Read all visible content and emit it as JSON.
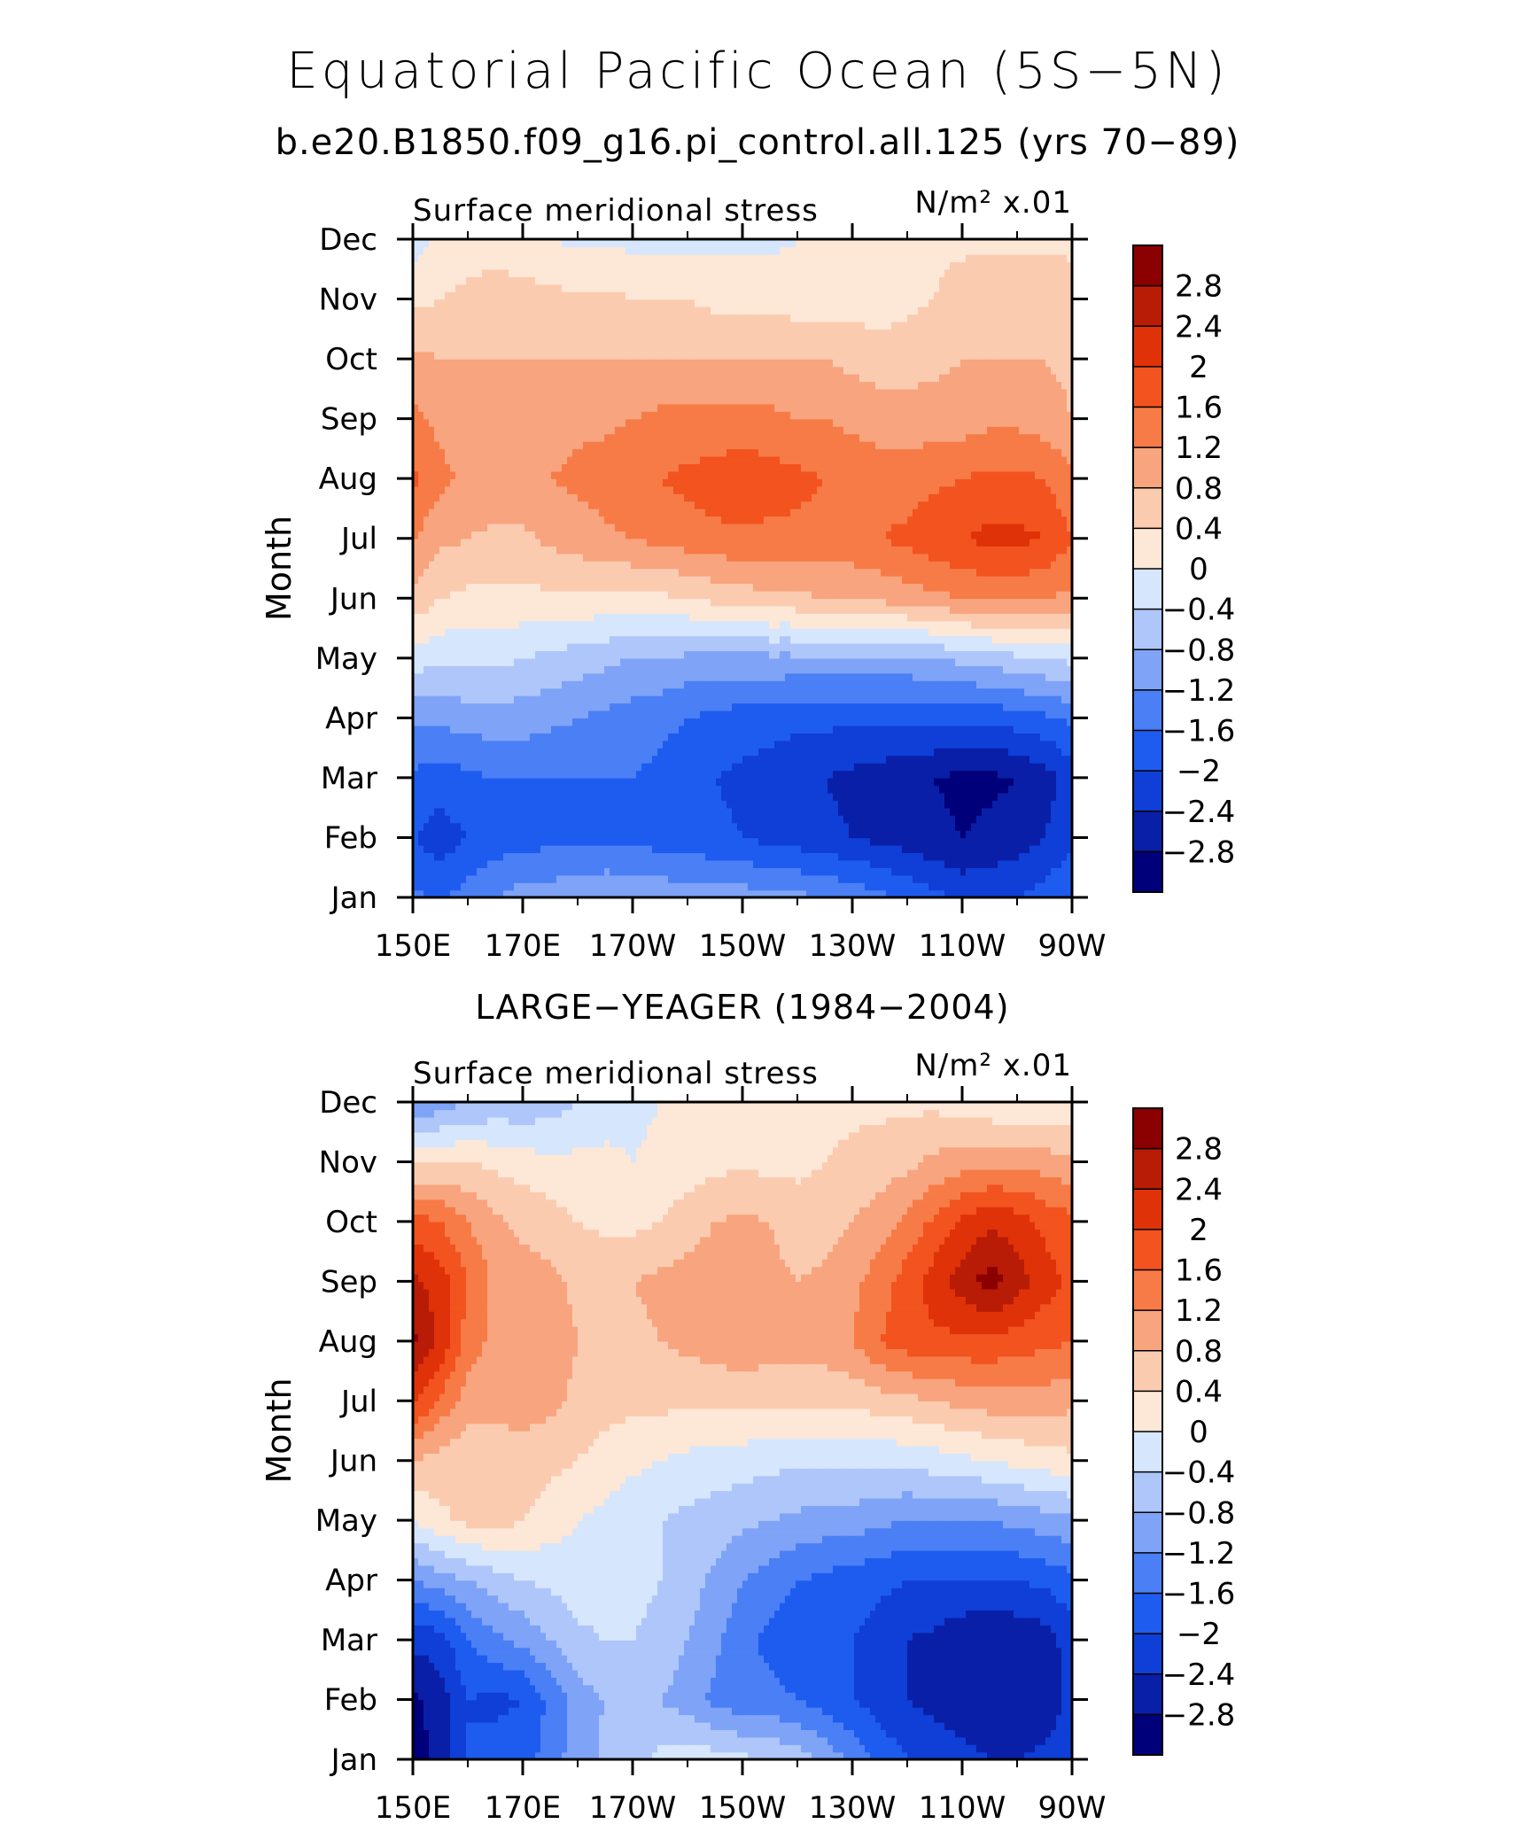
{
  "title": "Equatorial Pacific Ocean (5S−5N)",
  "subtitle": "b.e20.B1850.f09_g16.pi_control.all.125 (yrs 70−89)",
  "colorbar": {
    "levels": [
      -2.8,
      -2.4,
      -2,
      -1.6,
      -1.2,
      -0.8,
      -0.4,
      0,
      0.4,
      0.8,
      1.2,
      1.6,
      2,
      2.4,
      2.8
    ],
    "labels": [
      "2.8",
      "2.4",
      "2",
      "1.6",
      "1.2",
      "0.8",
      "0.4",
      "0",
      "−0.4",
      "−0.8",
      "−1.2",
      "−1.6",
      "−2",
      "−2.4",
      "−2.8"
    ],
    "colors": [
      "#00007a",
      "#0a1fa8",
      "#0f3fd6",
      "#1e5cf0",
      "#4a7ff5",
      "#7ea3f7",
      "#aec6fa",
      "#d6e6fc",
      "#fde7d6",
      "#fbcbb0",
      "#f8a47e",
      "#f77b47",
      "#f2531f",
      "#e03208",
      "#b81c06",
      "#8b0000"
    ]
  },
  "chart_data": [
    {
      "type": "heatmap",
      "label": "b.e20.B1850.f09_g16.pi_control.all.125 (yrs 70−89)",
      "panel_title": "",
      "left_label": "Surface meridional stress",
      "right_label": "N/m² x.01",
      "ylabel": "Month",
      "xlabel": "",
      "x_tick_labels": [
        "150E",
        "170E",
        "170W",
        "150W",
        "130W",
        "110W",
        "90W"
      ],
      "y_tick_labels": [
        "Jan",
        "Feb",
        "Mar",
        "Apr",
        "May",
        "Jun",
        "Jul",
        "Aug",
        "Sep",
        "Oct",
        "Nov",
        "Dec"
      ],
      "x_lon": [
        150,
        155,
        160,
        165,
        170,
        175,
        180,
        185,
        190,
        195,
        200,
        205,
        210,
        215,
        220,
        225,
        230,
        235,
        240,
        245,
        250,
        255,
        260,
        265,
        270
      ],
      "values": [
        [
          -1.5,
          -1.7,
          -1.4,
          -1.2,
          -1.0,
          -1.0,
          -0.9,
          -0.8,
          -0.9,
          -0.9,
          -1.0,
          -1.0,
          -1.0,
          -1.1,
          -1.1,
          -1.2,
          -1.3,
          -1.5,
          -1.7,
          -1.9,
          -2.1,
          -2.1,
          -2.0,
          -1.8,
          -1.6
        ],
        [
          -2.0,
          -2.2,
          -2.0,
          -1.8,
          -1.8,
          -1.7,
          -1.7,
          -1.7,
          -1.7,
          -1.8,
          -1.8,
          -1.9,
          -2.0,
          -2.1,
          -2.2,
          -2.3,
          -2.4,
          -2.5,
          -2.6,
          -2.7,
          -2.8,
          -2.7,
          -2.6,
          -2.4,
          -2.1
        ],
        [
          -1.7,
          -1.8,
          -1.7,
          -1.6,
          -1.6,
          -1.6,
          -1.6,
          -1.6,
          -1.6,
          -1.7,
          -1.8,
          -2.0,
          -2.1,
          -2.2,
          -2.3,
          -2.4,
          -2.5,
          -2.6,
          -2.7,
          -2.8,
          -2.9,
          -2.9,
          -2.8,
          -2.6,
          -2.2
        ],
        [
          -1.1,
          -1.1,
          -1.0,
          -1.0,
          -1.0,
          -1.1,
          -1.2,
          -1.3,
          -1.4,
          -1.5,
          -1.6,
          -1.7,
          -1.8,
          -1.8,
          -1.9,
          -1.9,
          -1.9,
          -1.9,
          -1.9,
          -1.9,
          -1.9,
          -1.9,
          -1.8,
          -1.7,
          -1.5
        ],
        [
          -0.2,
          -0.3,
          -0.3,
          -0.3,
          -0.4,
          -0.5,
          -0.6,
          -0.7,
          -0.8,
          -0.8,
          -0.9,
          -0.9,
          -0.9,
          -0.9,
          -0.9,
          -0.9,
          -0.9,
          -0.9,
          -0.9,
          -0.8,
          -0.7,
          -0.6,
          -0.5,
          -0.4,
          -0.3
        ],
        [
          0.7,
          0.4,
          0.3,
          0.3,
          0.3,
          0.3,
          0.3,
          0.3,
          0.3,
          0.3,
          0.4,
          0.5,
          0.6,
          0.7,
          0.7,
          0.8,
          0.8,
          0.9,
          1.0,
          1.1,
          1.2,
          1.3,
          1.3,
          1.2,
          1.1
        ],
        [
          1.2,
          0.9,
          0.8,
          0.7,
          0.7,
          0.9,
          1.0,
          1.1,
          1.2,
          1.3,
          1.4,
          1.5,
          1.5,
          1.5,
          1.5,
          1.5,
          1.5,
          1.6,
          1.7,
          1.9,
          2.0,
          2.1,
          2.1,
          2.0,
          1.6
        ],
        [
          1.7,
          1.3,
          1.1,
          1.1,
          1.1,
          1.2,
          1.3,
          1.4,
          1.5,
          1.6,
          1.7,
          1.8,
          1.9,
          1.8,
          1.7,
          1.6,
          1.5,
          1.4,
          1.4,
          1.5,
          1.6,
          1.7,
          1.7,
          1.6,
          1.3
        ],
        [
          1.3,
          1.1,
          1.0,
          1.0,
          1.0,
          1.0,
          1.1,
          1.1,
          1.2,
          1.3,
          1.3,
          1.3,
          1.3,
          1.3,
          1.2,
          1.2,
          1.1,
          1.0,
          1.0,
          1.0,
          1.0,
          1.1,
          1.1,
          1.0,
          0.8
        ],
        [
          0.9,
          0.8,
          0.8,
          0.8,
          0.8,
          0.8,
          0.8,
          0.8,
          0.8,
          0.8,
          0.8,
          0.8,
          0.8,
          0.8,
          0.8,
          0.8,
          0.7,
          0.6,
          0.6,
          0.7,
          0.8,
          0.8,
          0.8,
          0.8,
          0.7
        ],
        [
          0.3,
          0.4,
          0.5,
          0.6,
          0.6,
          0.5,
          0.5,
          0.5,
          0.4,
          0.4,
          0.4,
          0.3,
          0.3,
          0.3,
          0.2,
          0.2,
          0.2,
          0.2,
          0.3,
          0.4,
          0.6,
          0.7,
          0.7,
          0.7,
          0.6
        ],
        [
          -0.2,
          0.1,
          0.2,
          0.2,
          0.1,
          0.0,
          -0.1,
          -0.1,
          -0.1,
          -0.1,
          -0.1,
          -0.1,
          -0.1,
          -0.1,
          0.0,
          0.1,
          0.2,
          0.2,
          0.2,
          0.3,
          0.3,
          0.3,
          0.3,
          0.3,
          0.3
        ]
      ]
    },
    {
      "type": "heatmap",
      "label": "LARGE−YEAGER (1984−2004)",
      "panel_title": "LARGE−YEAGER (1984−2004)",
      "left_label": "Surface meridional stress",
      "right_label": "N/m² x.01",
      "ylabel": "Month",
      "xlabel": "",
      "x_tick_labels": [
        "150E",
        "170E",
        "170W",
        "150W",
        "130W",
        "110W",
        "90W"
      ],
      "y_tick_labels": [
        "Jan",
        "Feb",
        "Mar",
        "Apr",
        "May",
        "Jun",
        "Jul",
        "Aug",
        "Sep",
        "Oct",
        "Nov",
        "Dec"
      ],
      "x_lon": [
        150,
        155,
        160,
        165,
        170,
        175,
        180,
        185,
        190,
        195,
        200,
        205,
        210,
        215,
        220,
        225,
        230,
        235,
        240,
        245,
        250,
        255,
        260,
        265,
        270
      ],
      "values": [
        [
          -3.0,
          -2.7,
          -2.0,
          -1.8,
          -1.8,
          -1.4,
          -1.0,
          -0.7,
          -0.5,
          -0.3,
          -0.2,
          -0.2,
          -0.3,
          -0.4,
          -0.6,
          -0.9,
          -1.3,
          -1.7,
          -2.0,
          -2.2,
          -2.3,
          -2.4,
          -2.4,
          -2.3,
          -2.2
        ],
        [
          -2.9,
          -2.6,
          -2.0,
          -2.1,
          -2.0,
          -1.5,
          -1.0,
          -0.8,
          -0.7,
          -0.8,
          -1.0,
          -1.3,
          -1.5,
          -1.5,
          -1.6,
          -1.8,
          -2.0,
          -2.2,
          -2.4,
          -2.5,
          -2.6,
          -2.7,
          -2.7,
          -2.6,
          -2.3
        ],
        [
          -2.3,
          -2.2,
          -1.6,
          -1.3,
          -1.1,
          -0.8,
          -0.5,
          -0.4,
          -0.4,
          -0.5,
          -0.8,
          -1.1,
          -1.5,
          -1.7,
          -1.8,
          -1.9,
          -2.0,
          -2.2,
          -2.4,
          -2.5,
          -2.7,
          -2.8,
          -2.7,
          -2.6,
          -2.2
        ],
        [
          -1.2,
          -1.0,
          -0.8,
          -0.6,
          -0.4,
          -0.3,
          -0.2,
          -0.2,
          -0.3,
          -0.4,
          -0.6,
          -0.9,
          -1.2,
          -1.4,
          -1.6,
          -1.7,
          -1.8,
          -1.9,
          -2.0,
          -2.0,
          -2.0,
          -2.0,
          -2.0,
          -1.9,
          -1.7
        ],
        [
          0.0,
          0.3,
          0.5,
          0.6,
          0.4,
          0.2,
          0.0,
          -0.1,
          -0.3,
          -0.4,
          -0.5,
          -0.6,
          -0.7,
          -0.8,
          -0.9,
          -1.0,
          -1.0,
          -1.1,
          -1.2,
          -1.2,
          -1.2,
          -1.2,
          -1.1,
          -1.0,
          -0.9
        ],
        [
          0.8,
          0.6,
          0.5,
          0.6,
          0.6,
          0.5,
          0.4,
          0.2,
          0.1,
          0.0,
          -0.1,
          -0.2,
          -0.2,
          -0.3,
          -0.3,
          -0.3,
          -0.3,
          -0.3,
          -0.3,
          -0.2,
          -0.1,
          0.0,
          0.1,
          0.2,
          0.3
        ],
        [
          2.1,
          1.5,
          1.0,
          0.9,
          1.0,
          0.9,
          0.7,
          0.6,
          0.5,
          0.5,
          0.5,
          0.5,
          0.5,
          0.5,
          0.5,
          0.5,
          0.5,
          0.6,
          0.7,
          0.8,
          0.9,
          1.0,
          1.0,
          1.0,
          0.9
        ],
        [
          2.9,
          2.3,
          1.4,
          1.1,
          1.2,
          1.1,
          0.8,
          0.7,
          0.7,
          0.8,
          0.9,
          1.0,
          1.1,
          1.0,
          1.0,
          1.0,
          1.2,
          1.6,
          1.8,
          1.9,
          1.9,
          1.9,
          1.8,
          1.7,
          1.6
        ],
        [
          2.5,
          2.2,
          1.6,
          1.1,
          1.0,
          0.9,
          0.7,
          0.7,
          0.8,
          0.9,
          1.0,
          1.0,
          1.0,
          0.9,
          0.8,
          0.9,
          1.1,
          1.4,
          1.8,
          2.2,
          2.6,
          3.0,
          2.6,
          2.2,
          1.9
        ],
        [
          1.8,
          1.6,
          1.2,
          0.9,
          0.7,
          0.6,
          0.4,
          0.3,
          0.3,
          0.4,
          0.6,
          0.8,
          0.9,
          0.8,
          0.6,
          0.6,
          0.8,
          1.0,
          1.3,
          1.7,
          2.1,
          2.3,
          2.2,
          1.9,
          1.7
        ],
        [
          0.3,
          0.4,
          0.4,
          0.3,
          0.2,
          0.1,
          0.1,
          0.1,
          0.0,
          0.1,
          0.2,
          0.3,
          0.3,
          0.3,
          0.3,
          0.4,
          0.5,
          0.6,
          0.7,
          0.9,
          1.0,
          1.1,
          1.1,
          1.0,
          0.9
        ],
        [
          -1.3,
          -1.0,
          -0.8,
          -0.7,
          -0.7,
          -0.6,
          -0.4,
          -0.2,
          -0.1,
          0.0,
          0.1,
          0.2,
          0.2,
          0.3,
          0.3,
          0.3,
          0.3,
          0.3,
          0.3,
          0.3,
          0.2,
          0.1,
          0.0,
          0.0,
          0.1
        ]
      ]
    }
  ]
}
